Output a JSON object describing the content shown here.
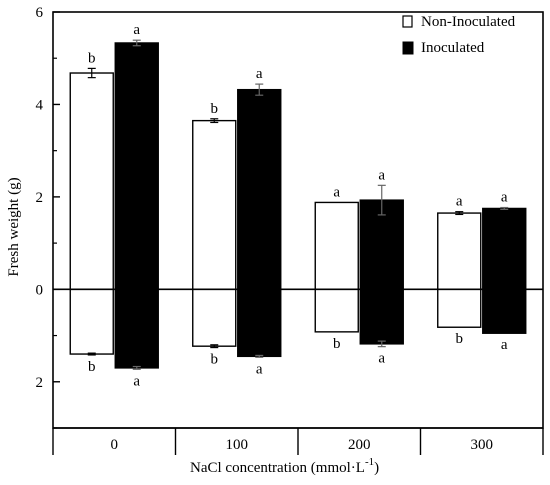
{
  "chart_data": {
    "type": "bar",
    "xlabel": "NaCl concentration (mmol·L",
    "xlabel_superscript": "-1",
    "xlabel_close": ")",
    "ylabel": "Fresh weight  (g)",
    "categories": [
      "0",
      "100",
      "200",
      "300"
    ],
    "ylim": [
      -3,
      6
    ],
    "yticks": [
      {
        "value": 6,
        "label": "6"
      },
      {
        "value": 4,
        "label": "4"
      },
      {
        "value": 2,
        "label": "2"
      },
      {
        "value": 0,
        "label": "0"
      },
      {
        "value": -2,
        "label": "2"
      }
    ],
    "legend_position": "top-right",
    "colors": {
      "non_inoculated": "#ffffff",
      "inoculated": "#000000",
      "stroke": "#000000"
    },
    "series": [
      {
        "name": "Non-Inoculated",
        "key": "non_inoculated",
        "upper": [
          4.68,
          3.65,
          1.88,
          1.65
        ],
        "upper_err": [
          0.1,
          0.04,
          0.0,
          0.03
        ],
        "upper_letters": [
          "b",
          "b",
          "a",
          "a"
        ],
        "lower": [
          -1.4,
          -1.23,
          -0.92,
          -0.82
        ],
        "lower_err": [
          0.02,
          0.03,
          0.0,
          0.0
        ],
        "lower_letters": [
          "b",
          "b",
          "b",
          "b"
        ]
      },
      {
        "name": "Inoculated",
        "key": "inoculated",
        "upper": [
          5.33,
          4.32,
          1.93,
          1.75
        ],
        "upper_err": [
          0.06,
          0.12,
          0.32,
          0.02
        ],
        "upper_letters": [
          "a",
          "a",
          "a",
          "a"
        ],
        "lower": [
          -1.7,
          -1.45,
          -1.18,
          -0.95
        ],
        "lower_err": [
          0.03,
          0.02,
          0.06,
          0.0
        ],
        "lower_letters": [
          "a",
          "a",
          "a",
          "a"
        ]
      }
    ]
  }
}
